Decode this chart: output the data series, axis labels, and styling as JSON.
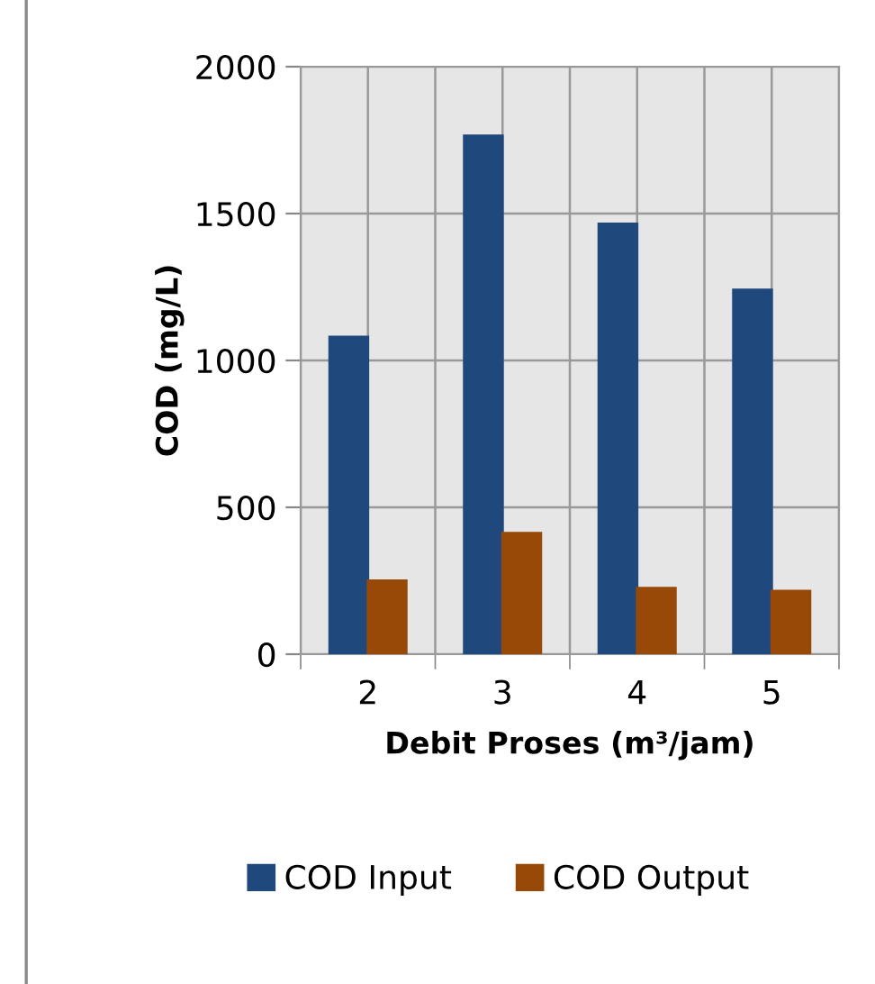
{
  "chart_data": {
    "type": "bar",
    "xlabel": "Debit Proses (m³/jam)",
    "ylabel": "COD (mg/L)",
    "categories": [
      "2",
      "3",
      "4",
      "5"
    ],
    "series": [
      {
        "name": "COD Input",
        "color": "#1f497d",
        "values": [
          1080,
          1765,
          1465,
          1240
        ]
      },
      {
        "name": "COD Output",
        "color": "#984807",
        "values": [
          250,
          412,
          225,
          215
        ]
      }
    ],
    "ylim": [
      0,
      2000
    ],
    "yticks": [
      0,
      500,
      1000,
      1500,
      2000
    ],
    "grid": true,
    "legend": "bottom"
  }
}
